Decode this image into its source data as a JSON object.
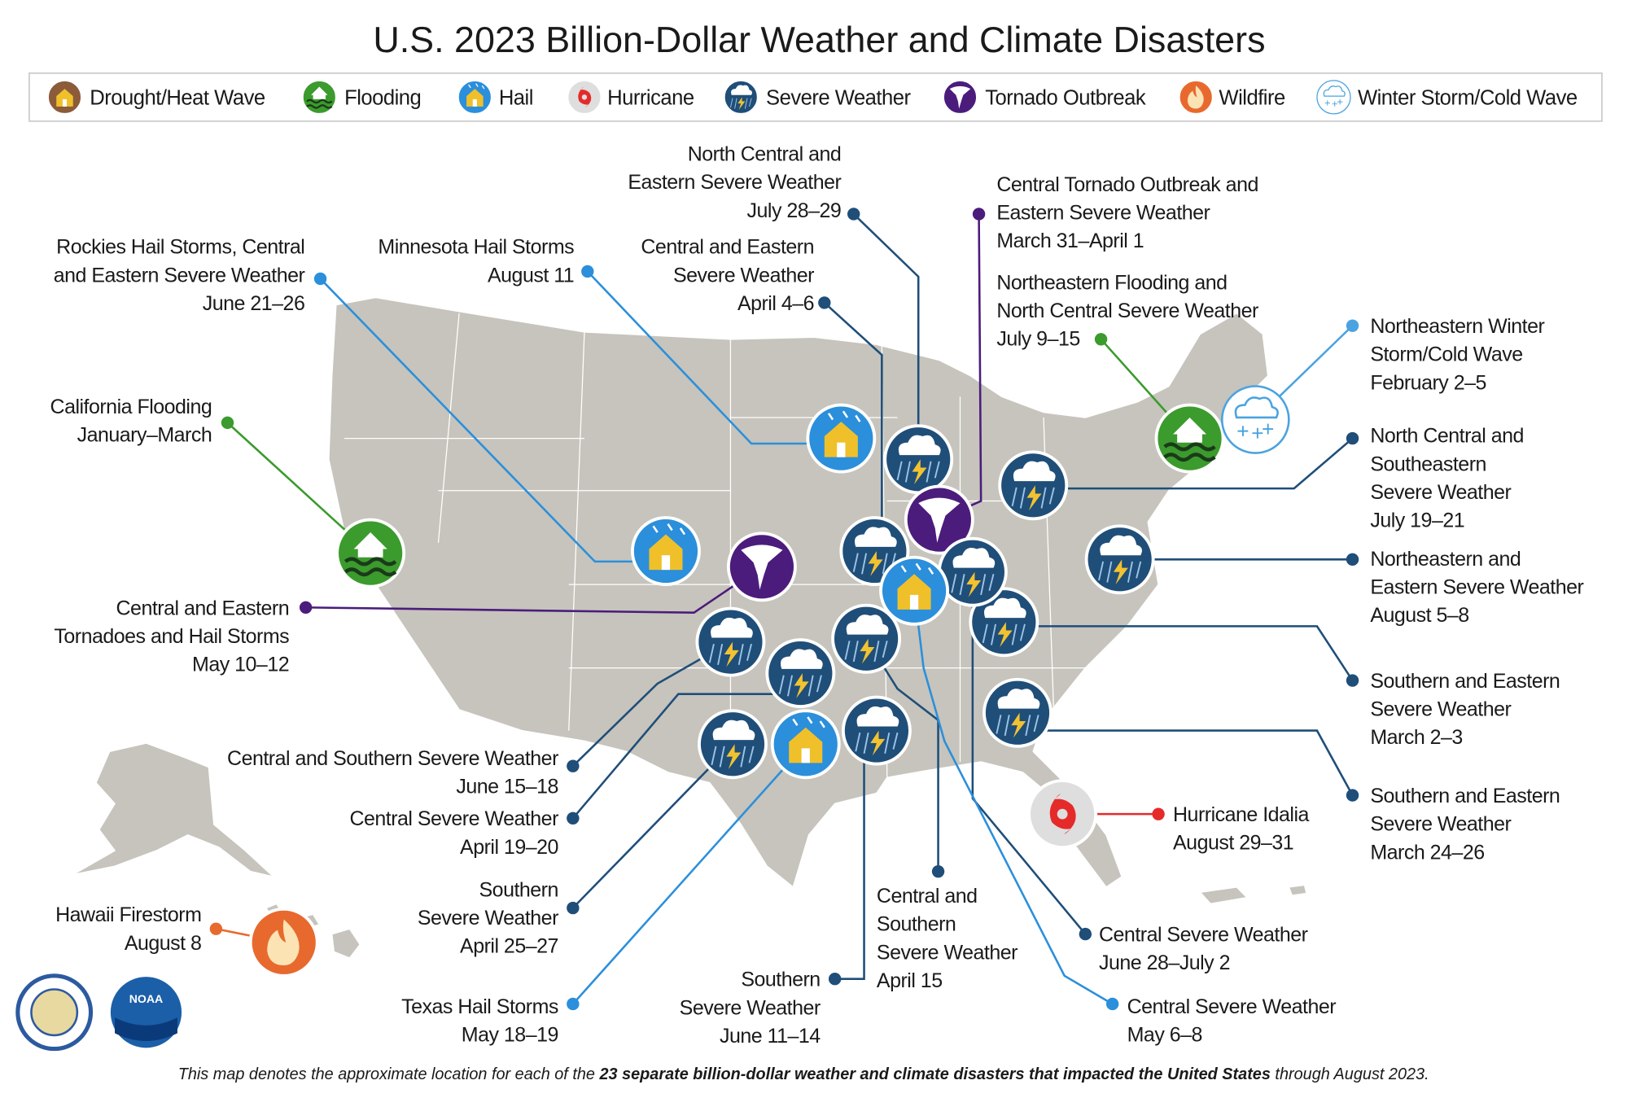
{
  "title": "U.S. 2023 Billion-Dollar Weather and Climate Disasters",
  "legend": [
    "Drought/Heat Wave",
    "Flooding",
    "Hail",
    "Hurricane",
    "Severe Weather",
    "Tornado Outbreak",
    "Wildfire",
    "Winter Storm/Cold Wave"
  ],
  "events": [
    {
      "lines": [
        "North Central and",
        "Eastern Severe Weather",
        "July 28–29"
      ]
    },
    {
      "lines": [
        "Central Tornado Outbreak and",
        "Eastern Severe Weather",
        "March 31–April 1"
      ]
    },
    {
      "lines": [
        "Rockies Hail Storms, Central",
        "and Eastern Severe Weather",
        "June 21–26"
      ]
    },
    {
      "lines": [
        "Minnesota Hail Storms",
        "August 11"
      ]
    },
    {
      "lines": [
        "Central and Eastern",
        "Severe Weather",
        "April 4–6"
      ]
    },
    {
      "lines": [
        "Northeastern Flooding and",
        "North Central Severe Weather",
        "July 9–15"
      ]
    },
    {
      "lines": [
        "Northeastern Winter",
        "Storm/Cold Wave",
        "February 2–5"
      ]
    },
    {
      "lines": [
        "California Flooding",
        "January–March"
      ]
    },
    {
      "lines": [
        "North Central and",
        "Southeastern",
        "Severe Weather",
        "July 19–21"
      ]
    },
    {
      "lines": [
        "Northeastern and",
        "Eastern Severe Weather",
        "August 5–8"
      ]
    },
    {
      "lines": [
        "Central and Eastern",
        "Tornadoes and Hail Storms",
        "May 10–12"
      ]
    },
    {
      "lines": [
        "Southern and Eastern",
        "Severe Weather",
        "March 2–3"
      ]
    },
    {
      "lines": [
        "Southern and Eastern",
        "Severe Weather",
        "March 24–26"
      ]
    },
    {
      "lines": [
        "Central and Southern Severe Weather",
        "June 15–18"
      ]
    },
    {
      "lines": [
        "Central Severe Weather",
        "April 19–20"
      ]
    },
    {
      "lines": [
        "Southern",
        "Severe Weather",
        "April 25–27"
      ]
    },
    {
      "lines": [
        "Texas Hail Storms",
        "May 18–19"
      ]
    },
    {
      "lines": [
        "Southern",
        "Severe Weather",
        "June 11–14"
      ]
    },
    {
      "lines": [
        "Central and",
        "Southern",
        "Severe Weather",
        "April 15"
      ]
    },
    {
      "lines": [
        "Central Severe Weather",
        "June 28–July 2"
      ]
    },
    {
      "lines": [
        "Central Severe Weather",
        "May 6–8"
      ]
    },
    {
      "lines": [
        "Hurricane Idalia",
        "August 29–31"
      ]
    },
    {
      "lines": [
        "Hawaii Firestorm",
        "August 8"
      ]
    }
  ],
  "noaa_logo": "NOAA",
  "footnote": {
    "before": "This map denotes the approximate location for each of the ",
    "bold": "23 separate billion-dollar weather and climate disasters that impacted the United States",
    "after": " through August 2023."
  }
}
